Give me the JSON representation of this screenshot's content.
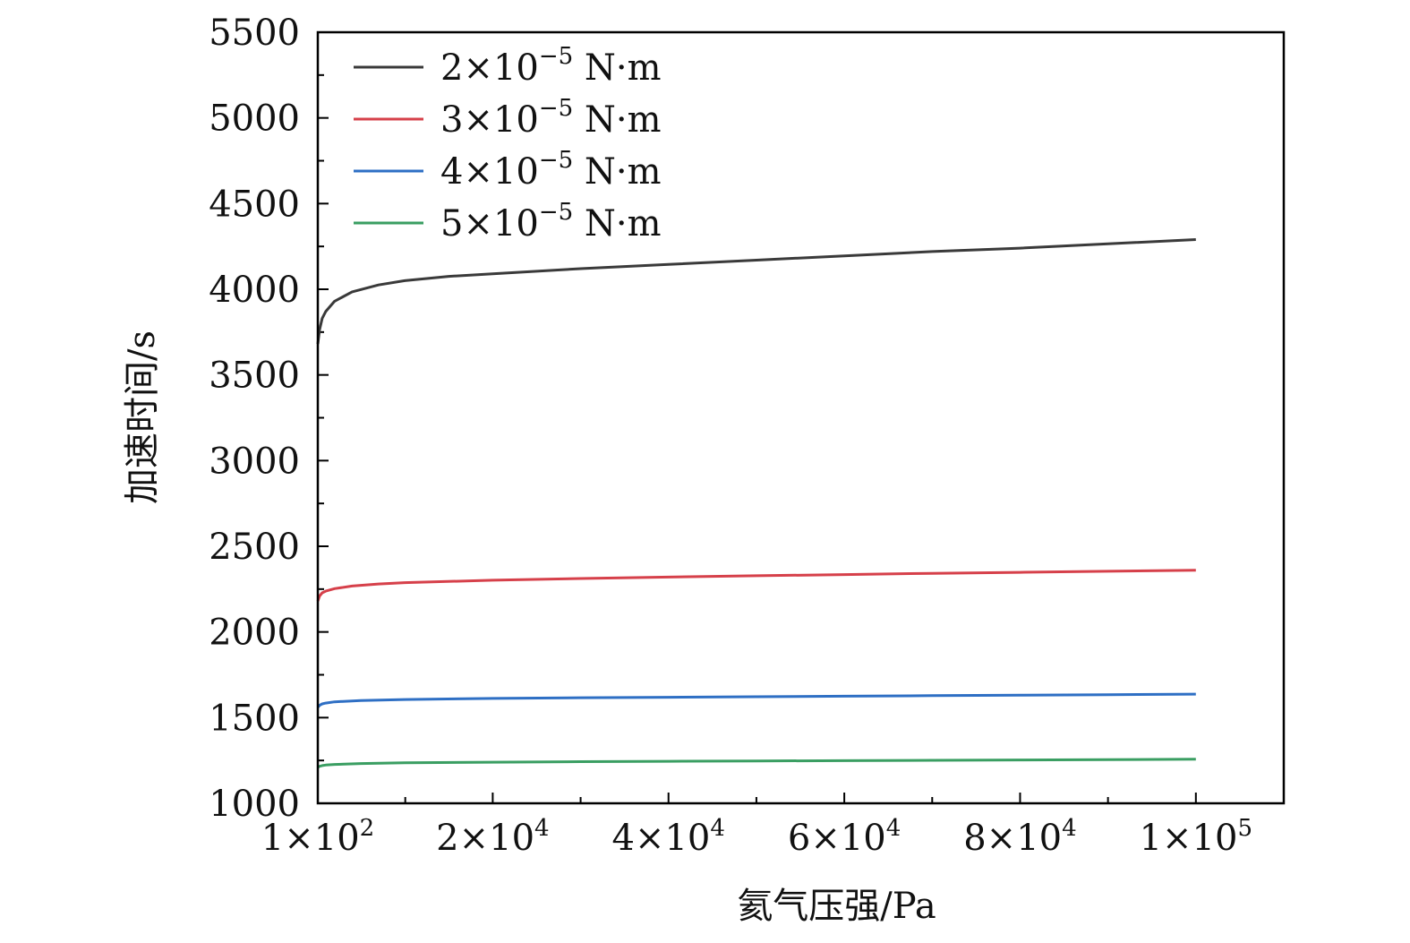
{
  "chart_data": {
    "type": "line",
    "xlabel": "氦气压强/Pa",
    "ylabel": "加速时间/s",
    "xlim": [
      100,
      110000
    ],
    "ylim": [
      1000,
      5500
    ],
    "x_ticks": [
      {
        "value": 100,
        "mantissa": "1",
        "exp": "2"
      },
      {
        "value": 20000,
        "mantissa": "2",
        "exp": "4"
      },
      {
        "value": 40000,
        "mantissa": "4",
        "exp": "4"
      },
      {
        "value": 60000,
        "mantissa": "6",
        "exp": "4"
      },
      {
        "value": 80000,
        "mantissa": "8",
        "exp": "4"
      },
      {
        "value": 100000,
        "mantissa": "1",
        "exp": "5"
      }
    ],
    "x_tick_times": "×10",
    "y_ticks": [
      1000,
      1500,
      2000,
      2500,
      3000,
      3500,
      4000,
      4500,
      5000,
      5500
    ],
    "legend_position": "top-left",
    "grid": false,
    "series": [
      {
        "name": "2×10⁻⁵ N·m",
        "legend": {
          "coef": "2",
          "times": "×10",
          "exp": "−5",
          "unit": "N·m"
        },
        "color": "#3a3a3a",
        "x": [
          100,
          300,
          600,
          1000,
          2000,
          4000,
          7000,
          10000,
          15000,
          20000,
          30000,
          40000,
          50000,
          60000,
          70000,
          80000,
          90000,
          100000
        ],
        "y": [
          3680,
          3765,
          3830,
          3870,
          3930,
          3985,
          4025,
          4050,
          4075,
          4090,
          4120,
          4145,
          4170,
          4195,
          4220,
          4240,
          4265,
          4290
        ]
      },
      {
        "name": "3×10⁻⁵ N·m",
        "legend": {
          "coef": "3",
          "times": "×10",
          "exp": "−5",
          "unit": "N·m"
        },
        "color": "#d6404a",
        "x": [
          100,
          300,
          600,
          1000,
          2000,
          4000,
          7000,
          10000,
          20000,
          30000,
          40000,
          50000,
          60000,
          70000,
          80000,
          90000,
          100000
        ],
        "y": [
          2180,
          2210,
          2228,
          2238,
          2253,
          2268,
          2280,
          2288,
          2302,
          2312,
          2320,
          2328,
          2335,
          2342,
          2348,
          2354,
          2360
        ]
      },
      {
        "name": "4×10⁻⁵ N·m",
        "legend": {
          "coef": "4",
          "times": "×10",
          "exp": "−5",
          "unit": "N·m"
        },
        "color": "#2e6fc4",
        "x": [
          100,
          300,
          600,
          1000,
          2000,
          5000,
          10000,
          20000,
          30000,
          40000,
          50000,
          60000,
          70000,
          80000,
          90000,
          100000
        ],
        "y": [
          1560,
          1572,
          1580,
          1585,
          1592,
          1600,
          1606,
          1612,
          1616,
          1619,
          1622,
          1625,
          1628,
          1631,
          1634,
          1637
        ]
      },
      {
        "name": "5×10⁻⁵ N·m",
        "legend": {
          "coef": "5",
          "times": "×10",
          "exp": "−5",
          "unit": "N·m"
        },
        "color": "#3a9e62",
        "x": [
          100,
          300,
          600,
          1000,
          2000,
          5000,
          10000,
          20000,
          30000,
          40000,
          50000,
          60000,
          70000,
          80000,
          90000,
          100000
        ],
        "y": [
          1210,
          1216,
          1220,
          1223,
          1227,
          1232,
          1236,
          1240,
          1243,
          1245,
          1247,
          1249,
          1251,
          1253,
          1255,
          1257
        ]
      }
    ]
  }
}
